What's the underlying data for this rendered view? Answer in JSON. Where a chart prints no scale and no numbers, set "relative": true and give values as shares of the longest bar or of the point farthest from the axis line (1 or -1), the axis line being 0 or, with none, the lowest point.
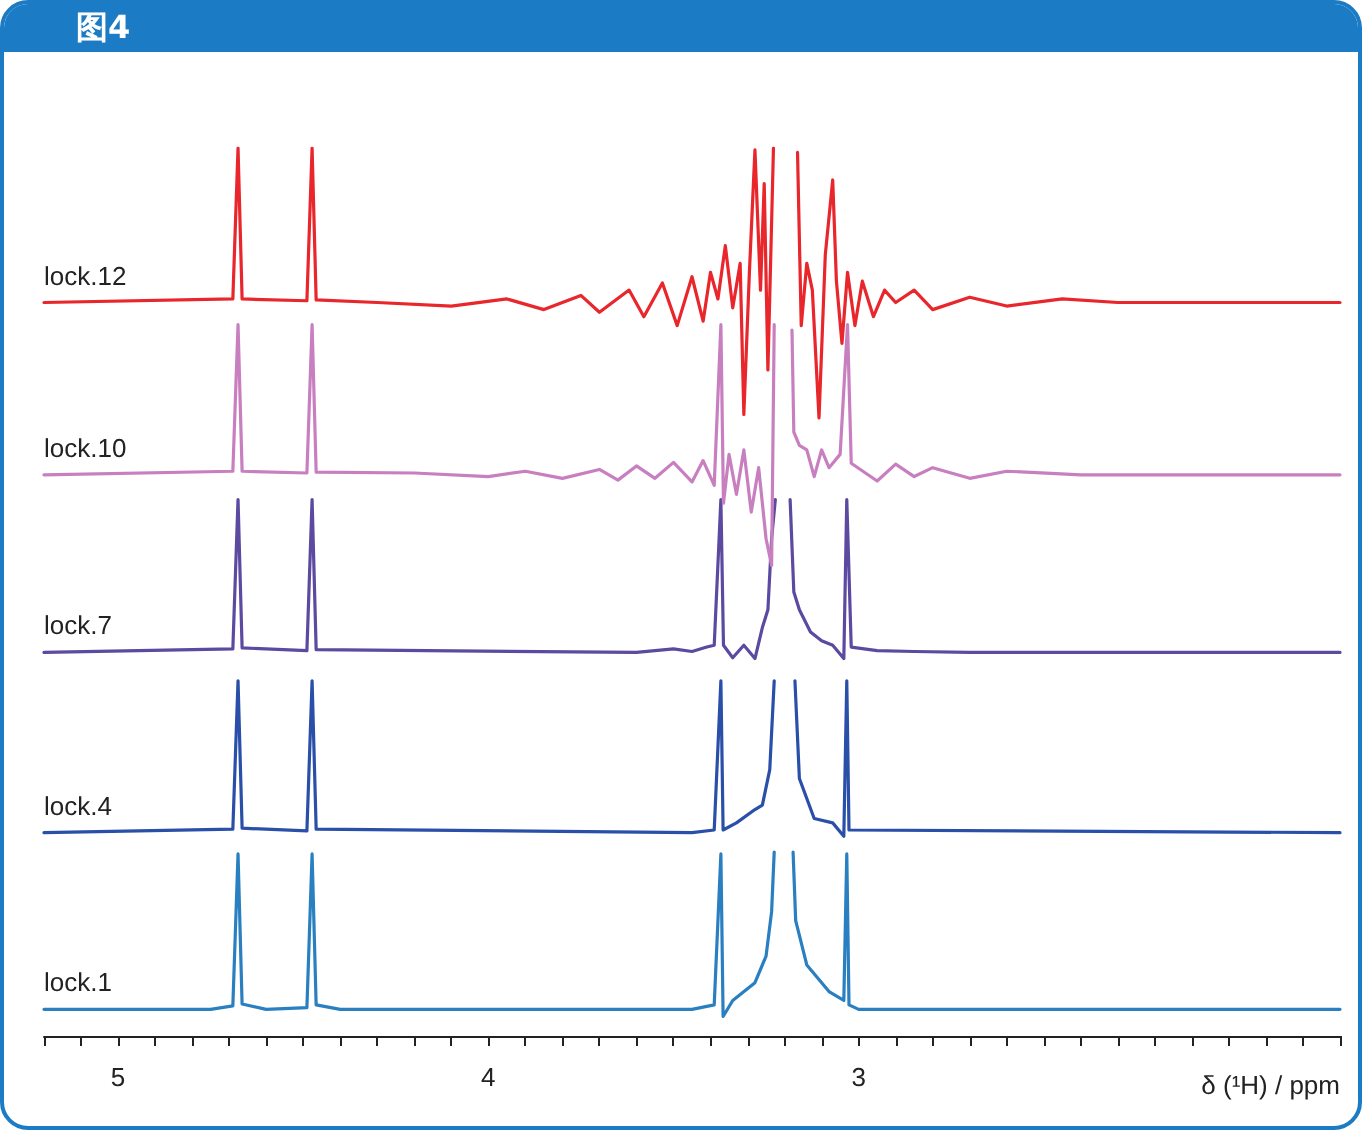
{
  "chart_data": {
    "type": "line",
    "title": "图4",
    "xlabel": "δ (¹H) / ppm",
    "relative": true,
    "legend": false,
    "grid": false,
    "marker": "none",
    "line_style": "solid",
    "xlim": [
      5.2,
      1.7
    ],
    "xticks": [
      {
        "value": 5.2,
        "label": null
      },
      {
        "value": 5.1,
        "label": null
      },
      5,
      {
        "value": 4.9,
        "label": null
      },
      {
        "value": 4.8,
        "label": null
      },
      {
        "value": 4.7,
        "label": null
      },
      {
        "value": 4.6,
        "label": null
      },
      {
        "value": 4.5,
        "label": null
      },
      {
        "value": 4.4,
        "label": null
      },
      {
        "value": 4.3,
        "label": null
      },
      {
        "value": 4.2,
        "label": null
      },
      {
        "value": 4.1,
        "label": null
      },
      4,
      {
        "value": 3.9,
        "label": null
      },
      {
        "value": 3.8,
        "label": null
      },
      {
        "value": 3.7,
        "label": null
      },
      {
        "value": 3.6,
        "label": null
      },
      {
        "value": 3.5,
        "label": null
      },
      {
        "value": 3.4,
        "label": null
      },
      {
        "value": 3.3,
        "label": null
      },
      {
        "value": 3.2,
        "label": null
      },
      {
        "value": 3.1,
        "label": null
      },
      3,
      {
        "value": 2.9,
        "label": null
      },
      {
        "value": 2.8,
        "label": null
      },
      {
        "value": 2.7,
        "label": null
      },
      {
        "value": 2.6,
        "label": null
      },
      {
        "value": 2.5,
        "label": null
      },
      {
        "value": 2.4,
        "label": null
      },
      {
        "value": 2.3,
        "label": null
      },
      {
        "value": 2.2,
        "label": null
      },
      {
        "value": 2.1,
        "label": null
      },
      {
        "value": 2.0,
        "label": null
      },
      {
        "value": 1.9,
        "label": null
      },
      {
        "value": 1.8,
        "label": null
      },
      {
        "value": 1.7,
        "label": null
      }
    ],
    "series": [
      {
        "name": "lock.1",
        "color": "#2a7fc0",
        "x": [
          5.2,
          4.75,
          4.69,
          4.676,
          4.665,
          4.6,
          4.49,
          4.476,
          4.465,
          4.4,
          3.45,
          3.39,
          3.372,
          3.366,
          3.34,
          3.28,
          3.25,
          3.235,
          3.228,
          3.2,
          3.177,
          3.17,
          3.14,
          3.08,
          3.04,
          3.032,
          3.026,
          3.0,
          1.7
        ],
        "values": [
          0.03,
          0.03,
          0.034,
          0.205,
          0.036,
          0.03,
          0.032,
          0.205,
          0.035,
          0.03,
          0.03,
          0.035,
          0.205,
          0.022,
          0.04,
          0.06,
          0.09,
          0.14,
          0.207,
          null,
          0.207,
          0.13,
          0.08,
          0.05,
          0.04,
          0.205,
          0.035,
          0.03,
          0.03
        ]
      },
      {
        "name": "lock.4",
        "color": "#2a4fa8",
        "x": [
          5.2,
          4.69,
          4.676,
          4.665,
          4.49,
          4.476,
          4.465,
          3.45,
          3.39,
          3.372,
          3.366,
          3.33,
          3.28,
          3.26,
          3.24,
          3.228,
          3.2,
          3.172,
          3.16,
          3.12,
          3.07,
          3.04,
          3.032,
          3.026,
          1.7
        ],
        "values": [
          0.229,
          0.233,
          0.4,
          0.234,
          0.231,
          0.4,
          0.233,
          0.229,
          0.232,
          0.4,
          0.232,
          0.24,
          0.255,
          0.26,
          0.3,
          0.4,
          null,
          0.4,
          0.29,
          0.245,
          0.24,
          0.225,
          0.4,
          0.232,
          0.229
        ]
      },
      {
        "name": "lock.7",
        "color": "#5b4aa0",
        "x": [
          5.2,
          4.69,
          4.676,
          4.665,
          4.49,
          4.476,
          4.465,
          3.6,
          3.5,
          3.45,
          3.41,
          3.39,
          3.372,
          3.365,
          3.34,
          3.31,
          3.28,
          3.26,
          3.245,
          3.235,
          3.225,
          3.2,
          3.185,
          3.175,
          3.16,
          3.13,
          3.1,
          3.07,
          3.04,
          3.032,
          3.02,
          2.95,
          2.85,
          2.7,
          1.7
        ],
        "values": [
          0.432,
          0.436,
          0.604,
          0.437,
          0.434,
          0.604,
          0.435,
          0.432,
          0.436,
          0.433,
          0.438,
          0.44,
          0.604,
          0.44,
          0.426,
          0.44,
          0.425,
          0.46,
          0.48,
          0.56,
          0.604,
          null,
          0.604,
          0.5,
          0.48,
          0.455,
          0.445,
          0.44,
          0.425,
          0.604,
          0.438,
          0.434,
          0.433,
          0.432,
          0.432
        ]
      },
      {
        "name": "lock.10",
        "color": "#c87fc0",
        "x": [
          5.2,
          4.69,
          4.676,
          4.665,
          4.49,
          4.476,
          4.465,
          4.2,
          4.0,
          3.9,
          3.8,
          3.7,
          3.65,
          3.6,
          3.55,
          3.5,
          3.45,
          3.42,
          3.39,
          3.372,
          3.365,
          3.35,
          3.33,
          3.31,
          3.29,
          3.27,
          3.25,
          3.235,
          3.228,
          3.2,
          3.18,
          3.175,
          3.16,
          3.14,
          3.12,
          3.1,
          3.08,
          3.05,
          3.03,
          3.02,
          2.95,
          2.9,
          2.85,
          2.8,
          2.7,
          2.6,
          2.4,
          1.7
        ],
        "values": [
          0.632,
          0.636,
          0.801,
          0.636,
          0.634,
          0.801,
          0.635,
          0.634,
          0.63,
          0.636,
          0.628,
          0.638,
          0.626,
          0.642,
          0.628,
          0.646,
          0.624,
          0.648,
          0.62,
          0.801,
          0.6,
          0.655,
          0.61,
          0.66,
          0.59,
          0.64,
          0.56,
          0.53,
          0.801,
          null,
          0.795,
          0.68,
          0.665,
          0.66,
          0.63,
          0.66,
          0.64,
          0.655,
          0.801,
          0.645,
          0.625,
          0.644,
          0.63,
          0.64,
          0.628,
          0.636,
          0.632,
          0.632
        ]
      },
      {
        "name": "lock.12",
        "color": "#e8262b",
        "x": [
          5.2,
          4.69,
          4.676,
          4.665,
          4.49,
          4.476,
          4.465,
          4.3,
          4.1,
          3.95,
          3.85,
          3.75,
          3.7,
          3.62,
          3.58,
          3.53,
          3.49,
          3.45,
          3.42,
          3.4,
          3.38,
          3.36,
          3.34,
          3.32,
          3.31,
          3.295,
          3.28,
          3.265,
          3.255,
          3.245,
          3.23,
          3.2,
          3.165,
          3.155,
          3.14,
          3.125,
          3.107,
          3.09,
          3.07,
          3.06,
          3.045,
          3.03,
          3.01,
          2.99,
          2.96,
          2.93,
          2.9,
          2.85,
          2.8,
          2.7,
          2.6,
          2.45,
          2.3,
          1.7
        ],
        "values": [
          0.826,
          0.83,
          1.0,
          0.83,
          0.828,
          1.0,
          0.829,
          0.826,
          0.822,
          0.83,
          0.818,
          0.834,
          0.815,
          0.84,
          0.81,
          0.848,
          0.8,
          0.855,
          0.805,
          0.86,
          0.83,
          0.89,
          0.82,
          0.87,
          0.7,
          0.86,
          0.998,
          0.84,
          0.96,
          0.75,
          1.0,
          null,
          0.995,
          0.8,
          0.87,
          0.84,
          0.696,
          0.88,
          0.964,
          0.85,
          0.78,
          0.86,
          0.8,
          0.85,
          0.81,
          0.84,
          0.826,
          0.84,
          0.818,
          0.832,
          0.822,
          0.83,
          0.826,
          0.826
        ]
      }
    ]
  }
}
